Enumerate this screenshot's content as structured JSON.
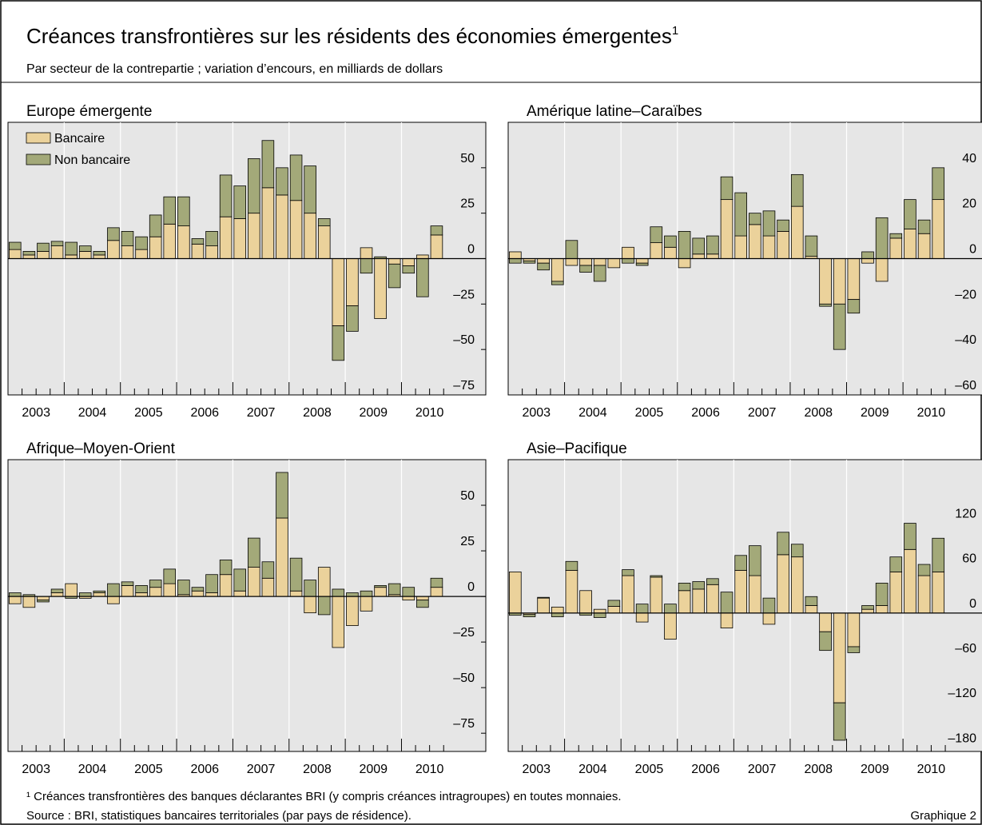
{
  "header": {
    "title": "Créances transfrontières sur les résidents des économies émergentes",
    "title_note": "1",
    "subtitle": "Par secteur de la contrepartie ; variation d’encours, en milliards de dollars"
  },
  "footer": {
    "note": "¹  Créances transfrontières des banques déclarantes BRI (y compris créances intragroupes) en toutes monnaies.",
    "source": "Source : BRI, statistiques bancaires territoriales (par pays de résidence).",
    "figure_label": "Graphique 2"
  },
  "chart_data": [
    {
      "type": "bar",
      "stacked": true,
      "title": "Europe émergente",
      "legend": "upper left",
      "years": [
        "2003",
        "2004",
        "2005",
        "2006",
        "2007",
        "2008",
        "2009",
        "2010"
      ],
      "series": [
        {
          "name": "Bancaire",
          "color": "#ebd29b",
          "values": [
            5,
            2,
            4,
            7,
            2,
            4,
            2,
            10,
            7,
            5,
            12,
            19,
            18,
            8,
            7,
            23,
            22,
            25,
            39,
            35,
            32,
            25,
            18,
            -37,
            -26,
            6,
            -33,
            -3,
            -4,
            2,
            13
          ]
        },
        {
          "name": "Non bancaire",
          "color": "#a3a979",
          "values": [
            4,
            2,
            4.5,
            2.5,
            7,
            3,
            2,
            7,
            8,
            7,
            12,
            15,
            16,
            3,
            8,
            23,
            18,
            30,
            26,
            15,
            25,
            26,
            4,
            -19,
            -14,
            -8,
            1,
            -13,
            -4,
            -21,
            5
          ]
        }
      ],
      "ylim": [
        -75,
        75
      ],
      "yticks": [
        {
          "value": -75,
          "label": "–75"
        },
        {
          "value": -50,
          "label": "–50"
        },
        {
          "value": -25,
          "label": "–25"
        },
        0,
        25,
        50
      ]
    },
    {
      "type": "bar",
      "stacked": true,
      "title": "Amérique latine–Caraïbes",
      "years": [
        "2003",
        "2004",
        "2005",
        "2006",
        "2007",
        "2008",
        "2009",
        "2010"
      ],
      "series": [
        {
          "color": "#ebd29b",
          "values": [
            3,
            -1,
            -2,
            -10,
            -3,
            -3,
            -3,
            -4,
            5,
            -2,
            7,
            5,
            -4,
            2,
            2,
            26,
            10,
            15,
            10,
            12,
            23,
            1,
            -20,
            -20,
            -18,
            -2,
            -10,
            9,
            13,
            11,
            26
          ]
        },
        {
          "color": "#a3a979",
          "values": [
            -2,
            -1,
            -3,
            -1.5,
            8,
            -3,
            -7,
            0,
            -2,
            -1,
            7,
            5,
            12,
            7,
            8,
            10,
            19,
            5,
            11,
            5,
            14,
            9,
            -1,
            -20,
            -6,
            3,
            18,
            2,
            13,
            6,
            14
          ]
        }
      ],
      "ylim": [
        -60,
        60
      ],
      "yticks": [
        {
          "value": -60,
          "label": "–60"
        },
        {
          "value": -40,
          "label": "–40"
        },
        {
          "value": -20,
          "label": "–20"
        },
        0,
        20,
        40
      ]
    },
    {
      "type": "bar",
      "stacked": true,
      "title": "Afrique–Moyen-Orient",
      "years": [
        "2003",
        "2004",
        "2005",
        "2006",
        "2007",
        "2008",
        "2009",
        "2010"
      ],
      "series": [
        {
          "color": "#ebd29b",
          "values": [
            -4,
            -6,
            -2,
            2,
            7,
            -1,
            2,
            -4,
            6,
            2,
            5,
            7,
            1,
            3,
            2,
            12,
            3,
            16,
            10,
            43,
            3,
            -9,
            16,
            -28,
            -16,
            -8,
            5,
            1,
            -2,
            -2,
            5
          ]
        },
        {
          "color": "#a3a979",
          "values": [
            2,
            1,
            -1,
            2,
            -1,
            2,
            1,
            7,
            2,
            4,
            4,
            8,
            8,
            2,
            10,
            8,
            12,
            16,
            9,
            25,
            18,
            9,
            -10,
            4,
            2,
            3,
            1,
            6,
            5,
            -4,
            5
          ]
        }
      ],
      "ylim": [
        -85,
        75
      ],
      "yticks": [
        {
          "value": -75,
          "label": "–75"
        },
        {
          "value": -50,
          "label": "–50"
        },
        {
          "value": -25,
          "label": "–25"
        },
        0,
        25,
        50
      ]
    },
    {
      "type": "bar",
      "stacked": true,
      "title": "Asie–Pacifique",
      "years": [
        "2003",
        "2004",
        "2005",
        "2006",
        "2007",
        "2008",
        "2009",
        "2010"
      ],
      "series": [
        {
          "color": "#ebd29b",
          "values": [
            55,
            -2,
            20,
            8,
            57,
            30,
            5,
            9,
            50,
            -12,
            48,
            -35,
            30,
            32,
            38,
            -20,
            57,
            50,
            -15,
            78,
            75,
            10,
            -25,
            -120,
            -45,
            5,
            10,
            55,
            85,
            50,
            55
          ]
        },
        {
          "color": "#a3a979",
          "values": [
            -3,
            -3,
            1,
            -5,
            12,
            -3,
            -6,
            8,
            8,
            12,
            2,
            12,
            10,
            10,
            8,
            28,
            20,
            40,
            20,
            30,
            17,
            12,
            -25,
            -50,
            -8,
            5,
            30,
            20,
            35,
            15,
            45
          ]
        }
      ],
      "ylim": [
        -185,
        205
      ],
      "yticks": [
        {
          "value": -180,
          "label": "–180"
        },
        {
          "value": -120,
          "label": "–120"
        },
        {
          "value": -60,
          "label": "–60"
        },
        0,
        60,
        120
      ]
    }
  ]
}
